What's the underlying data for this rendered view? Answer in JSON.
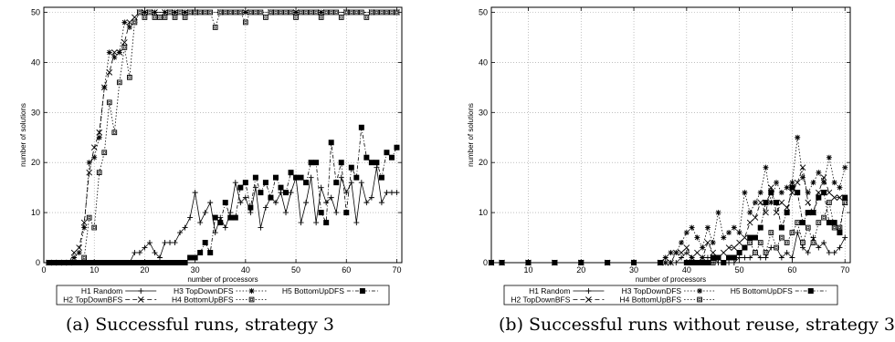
{
  "captions": {
    "left": "(a) Successful runs, strategy 3",
    "right": "(b) Successful runs without reuse, strategy 3"
  },
  "chart_data": [
    {
      "type": "line",
      "xlabel": "number of processors",
      "ylabel": "number of solutions",
      "xlim": [
        0,
        71
      ],
      "ylim": [
        0,
        51
      ],
      "xticks": [
        0,
        10,
        20,
        30,
        40,
        50,
        60,
        70
      ],
      "yticks": [
        0,
        10,
        20,
        30,
        40,
        50
      ],
      "grid": true,
      "legend_position": "bottom",
      "series": [
        {
          "name": "H1 Random",
          "marker": "plus",
          "dash": "",
          "color": "#000000",
          "x": [
            1,
            2,
            3,
            4,
            5,
            6,
            7,
            8,
            9,
            10,
            11,
            12,
            13,
            14,
            15,
            16,
            17,
            18,
            19,
            20,
            21,
            22,
            23,
            24,
            25,
            26,
            27,
            28,
            29,
            30,
            31,
            32,
            33,
            34,
            35,
            36,
            37,
            38,
            39,
            40,
            41,
            42,
            43,
            44,
            45,
            46,
            47,
            48,
            49,
            50,
            51,
            52,
            53,
            54,
            55,
            56,
            57,
            58,
            59,
            60,
            61,
            62,
            63,
            64,
            65,
            66,
            67,
            68,
            69,
            70
          ],
          "y": [
            0,
            0,
            0,
            0,
            0,
            0,
            0,
            0,
            0,
            0,
            0,
            0,
            0,
            0,
            0,
            0,
            0,
            2,
            2,
            3,
            4,
            2,
            1,
            4,
            4,
            4,
            6,
            7,
            9,
            14,
            8,
            10,
            12,
            6,
            9,
            7,
            10,
            16,
            12,
            13,
            10,
            15,
            7,
            11,
            13,
            12,
            14,
            10,
            14,
            17,
            8,
            12,
            17,
            8,
            15,
            12,
            13,
            10,
            17,
            14,
            16,
            8,
            16,
            12,
            13,
            19,
            12,
            14,
            14,
            14
          ]
        },
        {
          "name": "H2 TopDownBFS",
          "marker": "x",
          "dash": "5,3",
          "color": "#000000",
          "x": [
            1,
            2,
            3,
            4,
            5,
            6,
            7,
            8,
            9,
            10,
            11,
            12,
            13,
            14,
            15,
            16,
            17,
            18,
            19,
            20,
            22,
            24,
            26,
            28,
            30,
            35,
            40,
            45,
            50,
            55,
            60,
            65,
            70
          ],
          "y": [
            0,
            0,
            0,
            0,
            0,
            2,
            3,
            8,
            18,
            23,
            26,
            35,
            38,
            42,
            42,
            44,
            48,
            49,
            50,
            50,
            50,
            50,
            50,
            50,
            50,
            50,
            50,
            50,
            50,
            50,
            50,
            50,
            50
          ]
        },
        {
          "name": "H3 TopDownDFS",
          "marker": "star",
          "dash": "1.5,2",
          "color": "#000000",
          "x": [
            1,
            2,
            3,
            4,
            5,
            6,
            7,
            8,
            9,
            10,
            11,
            12,
            13,
            14,
            15,
            16,
            17,
            18,
            19,
            20,
            22,
            24,
            26,
            28,
            30,
            35,
            40,
            45,
            50,
            55,
            60,
            65,
            70
          ],
          "y": [
            0,
            0,
            0,
            0,
            0,
            1,
            2,
            7,
            20,
            21,
            25,
            35,
            42,
            41,
            42,
            48,
            47,
            48,
            50,
            50,
            50,
            50,
            50,
            50,
            50,
            50,
            50,
            50,
            50,
            50,
            50,
            50,
            50
          ]
        },
        {
          "name": "H4 BottomUpBFS",
          "marker": "square-open",
          "dash": "1.5,2",
          "color": "#000000",
          "x": [
            1,
            2,
            3,
            4,
            5,
            6,
            7,
            8,
            9,
            10,
            11,
            12,
            13,
            14,
            15,
            16,
            17,
            18,
            19,
            20,
            21,
            22,
            23,
            24,
            25,
            26,
            27,
            28,
            29,
            30,
            31,
            32,
            33,
            34,
            35,
            36,
            37,
            38,
            39,
            40,
            41,
            42,
            43,
            44,
            45,
            46,
            47,
            48,
            49,
            50,
            51,
            52,
            53,
            54,
            55,
            56,
            57,
            58,
            59,
            60,
            61,
            62,
            63,
            64,
            65,
            66,
            67,
            68,
            69,
            70
          ],
          "y": [
            0,
            0,
            0,
            0,
            0,
            0,
            0,
            1,
            9,
            7,
            18,
            22,
            32,
            26,
            36,
            43,
            37,
            48,
            50,
            49,
            50,
            49,
            49,
            49,
            50,
            49,
            50,
            49,
            50,
            50,
            50,
            50,
            50,
            47,
            50,
            50,
            50,
            50,
            50,
            48,
            50,
            50,
            50,
            49,
            50,
            50,
            50,
            50,
            50,
            49,
            50,
            50,
            50,
            50,
            49,
            50,
            50,
            50,
            49,
            50,
            50,
            50,
            50,
            49,
            50,
            50,
            50,
            50,
            50,
            50
          ]
        },
        {
          "name": "H5 BottomUpDFS",
          "marker": "square-filled",
          "dash": "4,2,1,2",
          "color": "#000000",
          "x": [
            1,
            2,
            3,
            4,
            5,
            6,
            7,
            8,
            9,
            10,
            11,
            12,
            13,
            14,
            15,
            16,
            17,
            18,
            19,
            20,
            21,
            22,
            23,
            24,
            25,
            26,
            27,
            28,
            29,
            30,
            31,
            32,
            33,
            34,
            35,
            36,
            37,
            38,
            39,
            40,
            41,
            42,
            43,
            44,
            45,
            46,
            47,
            48,
            49,
            50,
            51,
            52,
            53,
            54,
            55,
            56,
            57,
            58,
            59,
            60,
            61,
            62,
            63,
            64,
            65,
            66,
            67,
            68,
            69,
            70
          ],
          "y": [
            0,
            0,
            0,
            0,
            0,
            0,
            0,
            0,
            0,
            0,
            0,
            0,
            0,
            0,
            0,
            0,
            0,
            0,
            0,
            0,
            0,
            0,
            0,
            0,
            0,
            0,
            0,
            0,
            1,
            1,
            2,
            4,
            2,
            9,
            8,
            12,
            9,
            9,
            15,
            16,
            11,
            17,
            14,
            16,
            13,
            17,
            15,
            14,
            18,
            17,
            17,
            16,
            20,
            20,
            10,
            8,
            24,
            16,
            20,
            10,
            19,
            17,
            27,
            21,
            20,
            20,
            17,
            22,
            21,
            23
          ]
        }
      ]
    },
    {
      "type": "line",
      "xlabel": "number of processors",
      "ylabel": "number of solutions",
      "xlim": [
        3,
        71
      ],
      "ylim": [
        0,
        51
      ],
      "xticks": [
        10,
        20,
        30,
        40,
        50,
        60,
        70
      ],
      "yticks": [
        0,
        10,
        20,
        30,
        40,
        50
      ],
      "grid": true,
      "legend_position": "bottom",
      "series": [
        {
          "name": "H1 Random",
          "marker": "plus",
          "dash": "",
          "color": "#000000",
          "x": [
            3,
            5,
            10,
            15,
            20,
            25,
            30,
            35,
            36,
            37,
            38,
            39,
            40,
            41,
            42,
            43,
            44,
            45,
            46,
            47,
            48,
            49,
            50,
            51,
            52,
            53,
            54,
            55,
            56,
            57,
            58,
            59,
            60,
            61,
            62,
            63,
            64,
            65,
            66,
            67,
            68,
            69,
            70
          ],
          "y": [
            0,
            0,
            0,
            0,
            0,
            0,
            0,
            0,
            0,
            0,
            0,
            1,
            2,
            1,
            0,
            1,
            1,
            1,
            0,
            0,
            0,
            0,
            1,
            1,
            1,
            2,
            1,
            1,
            3,
            3,
            1,
            2,
            1,
            6,
            3,
            2,
            5,
            3,
            4,
            2,
            2,
            3,
            5
          ]
        },
        {
          "name": "H2 TopDownBFS",
          "marker": "x",
          "dash": "5,3",
          "color": "#000000",
          "x": [
            3,
            5,
            10,
            15,
            20,
            25,
            30,
            35,
            36,
            37,
            38,
            39,
            40,
            41,
            42,
            43,
            44,
            45,
            46,
            47,
            48,
            49,
            50,
            51,
            52,
            53,
            54,
            55,
            56,
            57,
            58,
            59,
            60,
            61,
            62,
            63,
            64,
            65,
            66,
            67,
            68,
            69,
            70
          ],
          "y": [
            0,
            0,
            0,
            0,
            0,
            0,
            0,
            0,
            0,
            0,
            2,
            2,
            3,
            1,
            2,
            1,
            4,
            2,
            1,
            2,
            3,
            3,
            4,
            5,
            8,
            9,
            12,
            10,
            15,
            10,
            12,
            11,
            14,
            16,
            19,
            12,
            10,
            14,
            17,
            14,
            13,
            13,
            12
          ]
        },
        {
          "name": "H3 TopDownDFS",
          "marker": "star",
          "dash": "1.5,2",
          "color": "#000000",
          "x": [
            3,
            5,
            10,
            15,
            20,
            25,
            30,
            35,
            36,
            37,
            38,
            39,
            40,
            41,
            42,
            43,
            44,
            45,
            46,
            47,
            48,
            49,
            50,
            51,
            52,
            53,
            54,
            55,
            56,
            57,
            58,
            59,
            60,
            61,
            62,
            63,
            64,
            65,
            66,
            67,
            68,
            69,
            70
          ],
          "y": [
            0,
            0,
            0,
            0,
            0,
            0,
            0,
            0,
            1,
            2,
            2,
            4,
            6,
            7,
            5,
            3,
            7,
            4,
            10,
            5,
            6,
            7,
            6,
            14,
            10,
            12,
            14,
            19,
            12,
            16,
            14,
            15,
            16,
            25,
            17,
            14,
            16,
            18,
            16,
            21,
            16,
            15,
            19
          ]
        },
        {
          "name": "H4 BottomUpBFS",
          "marker": "square-open",
          "dash": "1.5,2",
          "color": "#000000",
          "x": [
            3,
            5,
            10,
            15,
            20,
            25,
            30,
            35,
            40,
            41,
            42,
            43,
            44,
            45,
            46,
            47,
            48,
            49,
            50,
            51,
            52,
            53,
            54,
            55,
            56,
            57,
            58,
            59,
            60,
            61,
            62,
            63,
            64,
            65,
            66,
            67,
            68,
            69,
            70
          ],
          "y": [
            0,
            0,
            0,
            0,
            0,
            0,
            0,
            0,
            0,
            0,
            0,
            0,
            0,
            0,
            1,
            0,
            1,
            1,
            2,
            3,
            4,
            2,
            4,
            2,
            6,
            3,
            5,
            4,
            6,
            8,
            4,
            7,
            4,
            8,
            9,
            12,
            7,
            7,
            12
          ]
        },
        {
          "name": "H5 BottomUpDFS",
          "marker": "square-filled",
          "dash": "4,2,1,2",
          "color": "#000000",
          "x": [
            3,
            5,
            10,
            15,
            20,
            25,
            30,
            35,
            40,
            41,
            42,
            43,
            44,
            45,
            46,
            47,
            48,
            49,
            50,
            51,
            52,
            53,
            54,
            55,
            56,
            57,
            58,
            59,
            60,
            61,
            62,
            63,
            64,
            65,
            66,
            67,
            68,
            69,
            70
          ],
          "y": [
            0,
            0,
            0,
            0,
            0,
            0,
            0,
            0,
            0,
            0,
            0,
            0,
            0,
            1,
            1,
            0,
            1,
            1,
            2,
            3,
            5,
            5,
            7,
            12,
            14,
            12,
            7,
            10,
            15,
            14,
            8,
            10,
            10,
            13,
            14,
            8,
            8,
            6,
            13
          ]
        }
      ]
    }
  ]
}
